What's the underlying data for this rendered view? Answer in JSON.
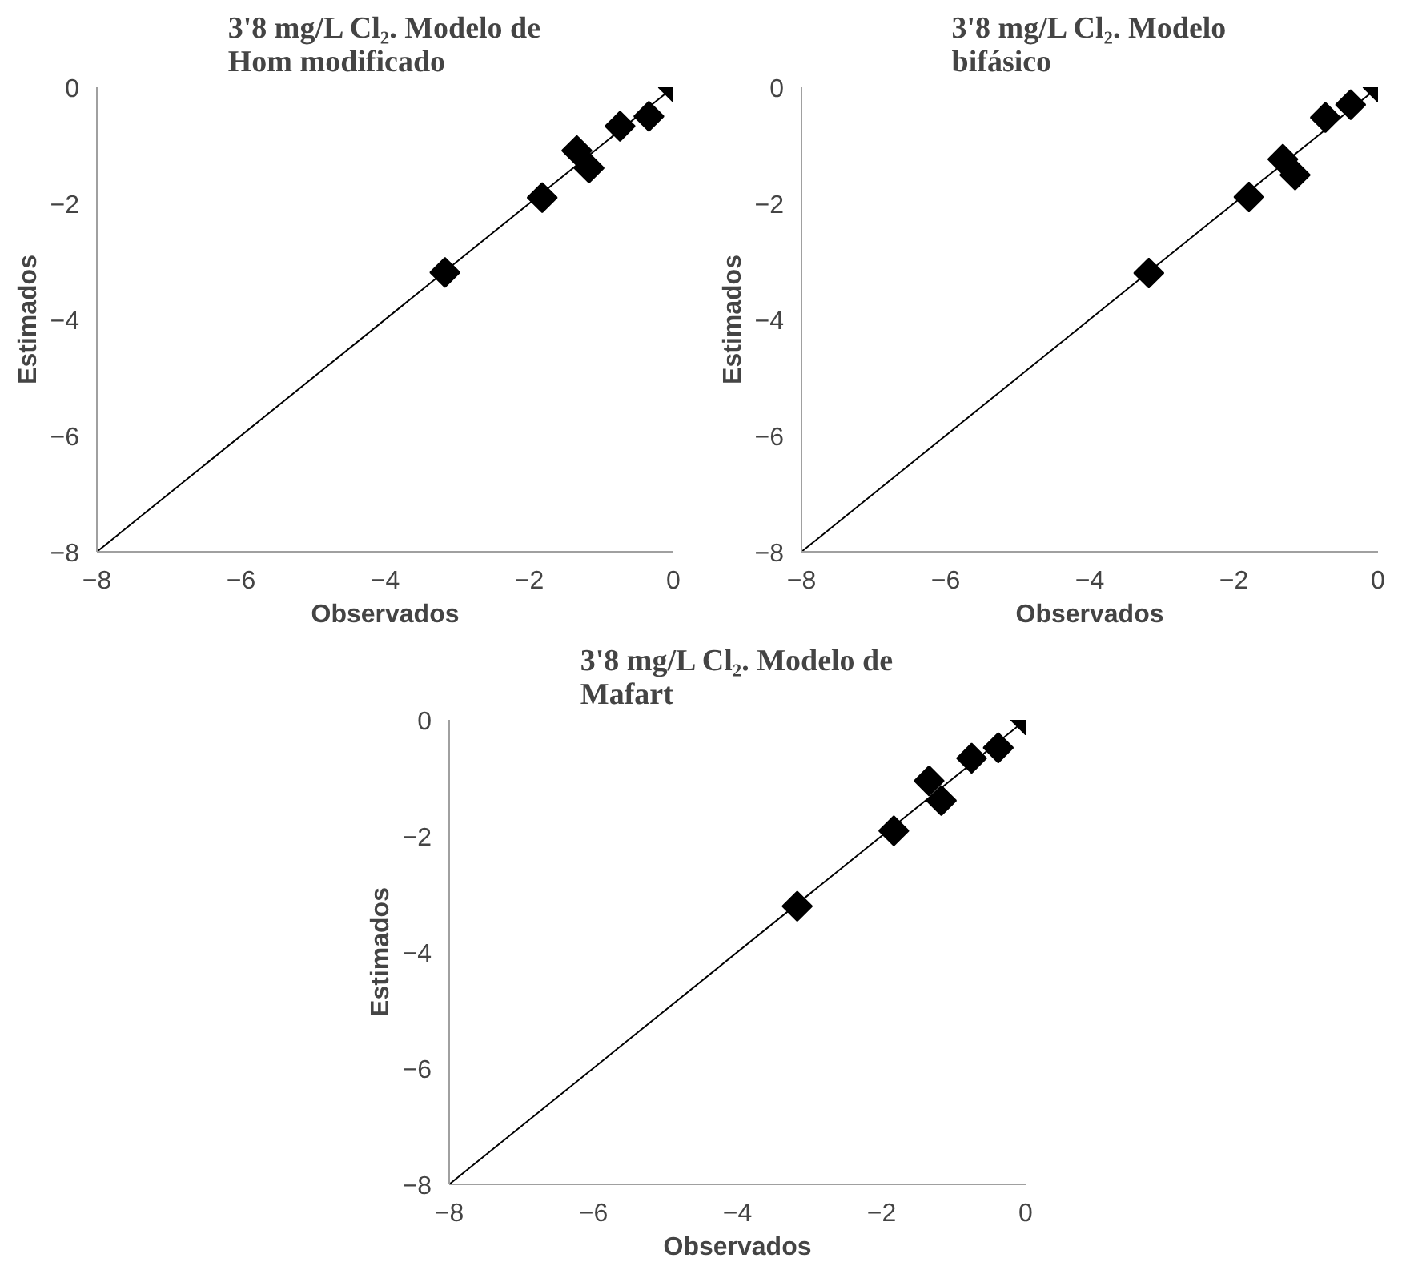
{
  "chart_data": [
    {
      "type": "scatter",
      "title": "3'8 mg/L Cl₂. Modelo de Hom modificado",
      "xlabel": "Observados",
      "ylabel": "Estimados",
      "xlim": [
        -8,
        0
      ],
      "ylim": [
        -8,
        0
      ],
      "xticks": [
        -8,
        -6,
        -4,
        -2,
        0
      ],
      "yticks": [
        -8,
        -6,
        -4,
        -2,
        0
      ],
      "series": [
        {
          "marker": "diamond",
          "color": "#000000",
          "x": [
            0,
            -0.34,
            -0.74,
            -1.34,
            -1.17,
            -1.82,
            -3.17
          ],
          "values": [
            0,
            -0.5,
            -0.67,
            -1.09,
            -1.39,
            -1.9,
            -3.19
          ]
        },
        {
          "type": "line",
          "color": "#000000",
          "x": [
            -8,
            0
          ],
          "values": [
            -8,
            0
          ]
        }
      ]
    },
    {
      "type": "scatter",
      "title": "3'8 mg/L Cl₂. Modelo bifásico",
      "xlabel": "Observados",
      "ylabel": "Estimados",
      "xlim": [
        -8,
        0
      ],
      "ylim": [
        -8,
        0
      ],
      "xticks": [
        -8,
        -6,
        -4,
        -2,
        0
      ],
      "yticks": [
        -8,
        -6,
        -4,
        -2,
        0
      ],
      "series": [
        {
          "marker": "diamond",
          "color": "#000000",
          "x": [
            0,
            -0.38,
            -0.73,
            -1.32,
            -1.15,
            -1.79,
            -3.18
          ],
          "values": [
            0,
            -0.3,
            -0.52,
            -1.24,
            -1.51,
            -1.89,
            -3.2
          ]
        },
        {
          "type": "line",
          "color": "#000000",
          "x": [
            -8,
            0
          ],
          "values": [
            -8,
            0
          ]
        }
      ]
    },
    {
      "type": "scatter",
      "title": "3'8 mg/L Cl₂. Modelo de Mafart",
      "xlabel": "Observados",
      "ylabel": "Estimados",
      "xlim": [
        -8,
        0
      ],
      "ylim": [
        -8,
        0
      ],
      "xticks": [
        -8,
        -6,
        -4,
        -2,
        0
      ],
      "yticks": [
        -8,
        -6,
        -4,
        -2,
        0
      ],
      "series": [
        {
          "marker": "diamond",
          "color": "#000000",
          "x": [
            0,
            -0.38,
            -0.75,
            -1.34,
            -1.17,
            -1.83,
            -3.17
          ],
          "values": [
            0,
            -0.48,
            -0.66,
            -1.05,
            -1.39,
            -1.91,
            -3.21
          ]
        },
        {
          "type": "line",
          "color": "#000000",
          "x": [
            -8,
            0
          ],
          "values": [
            -8,
            0
          ]
        }
      ]
    }
  ]
}
